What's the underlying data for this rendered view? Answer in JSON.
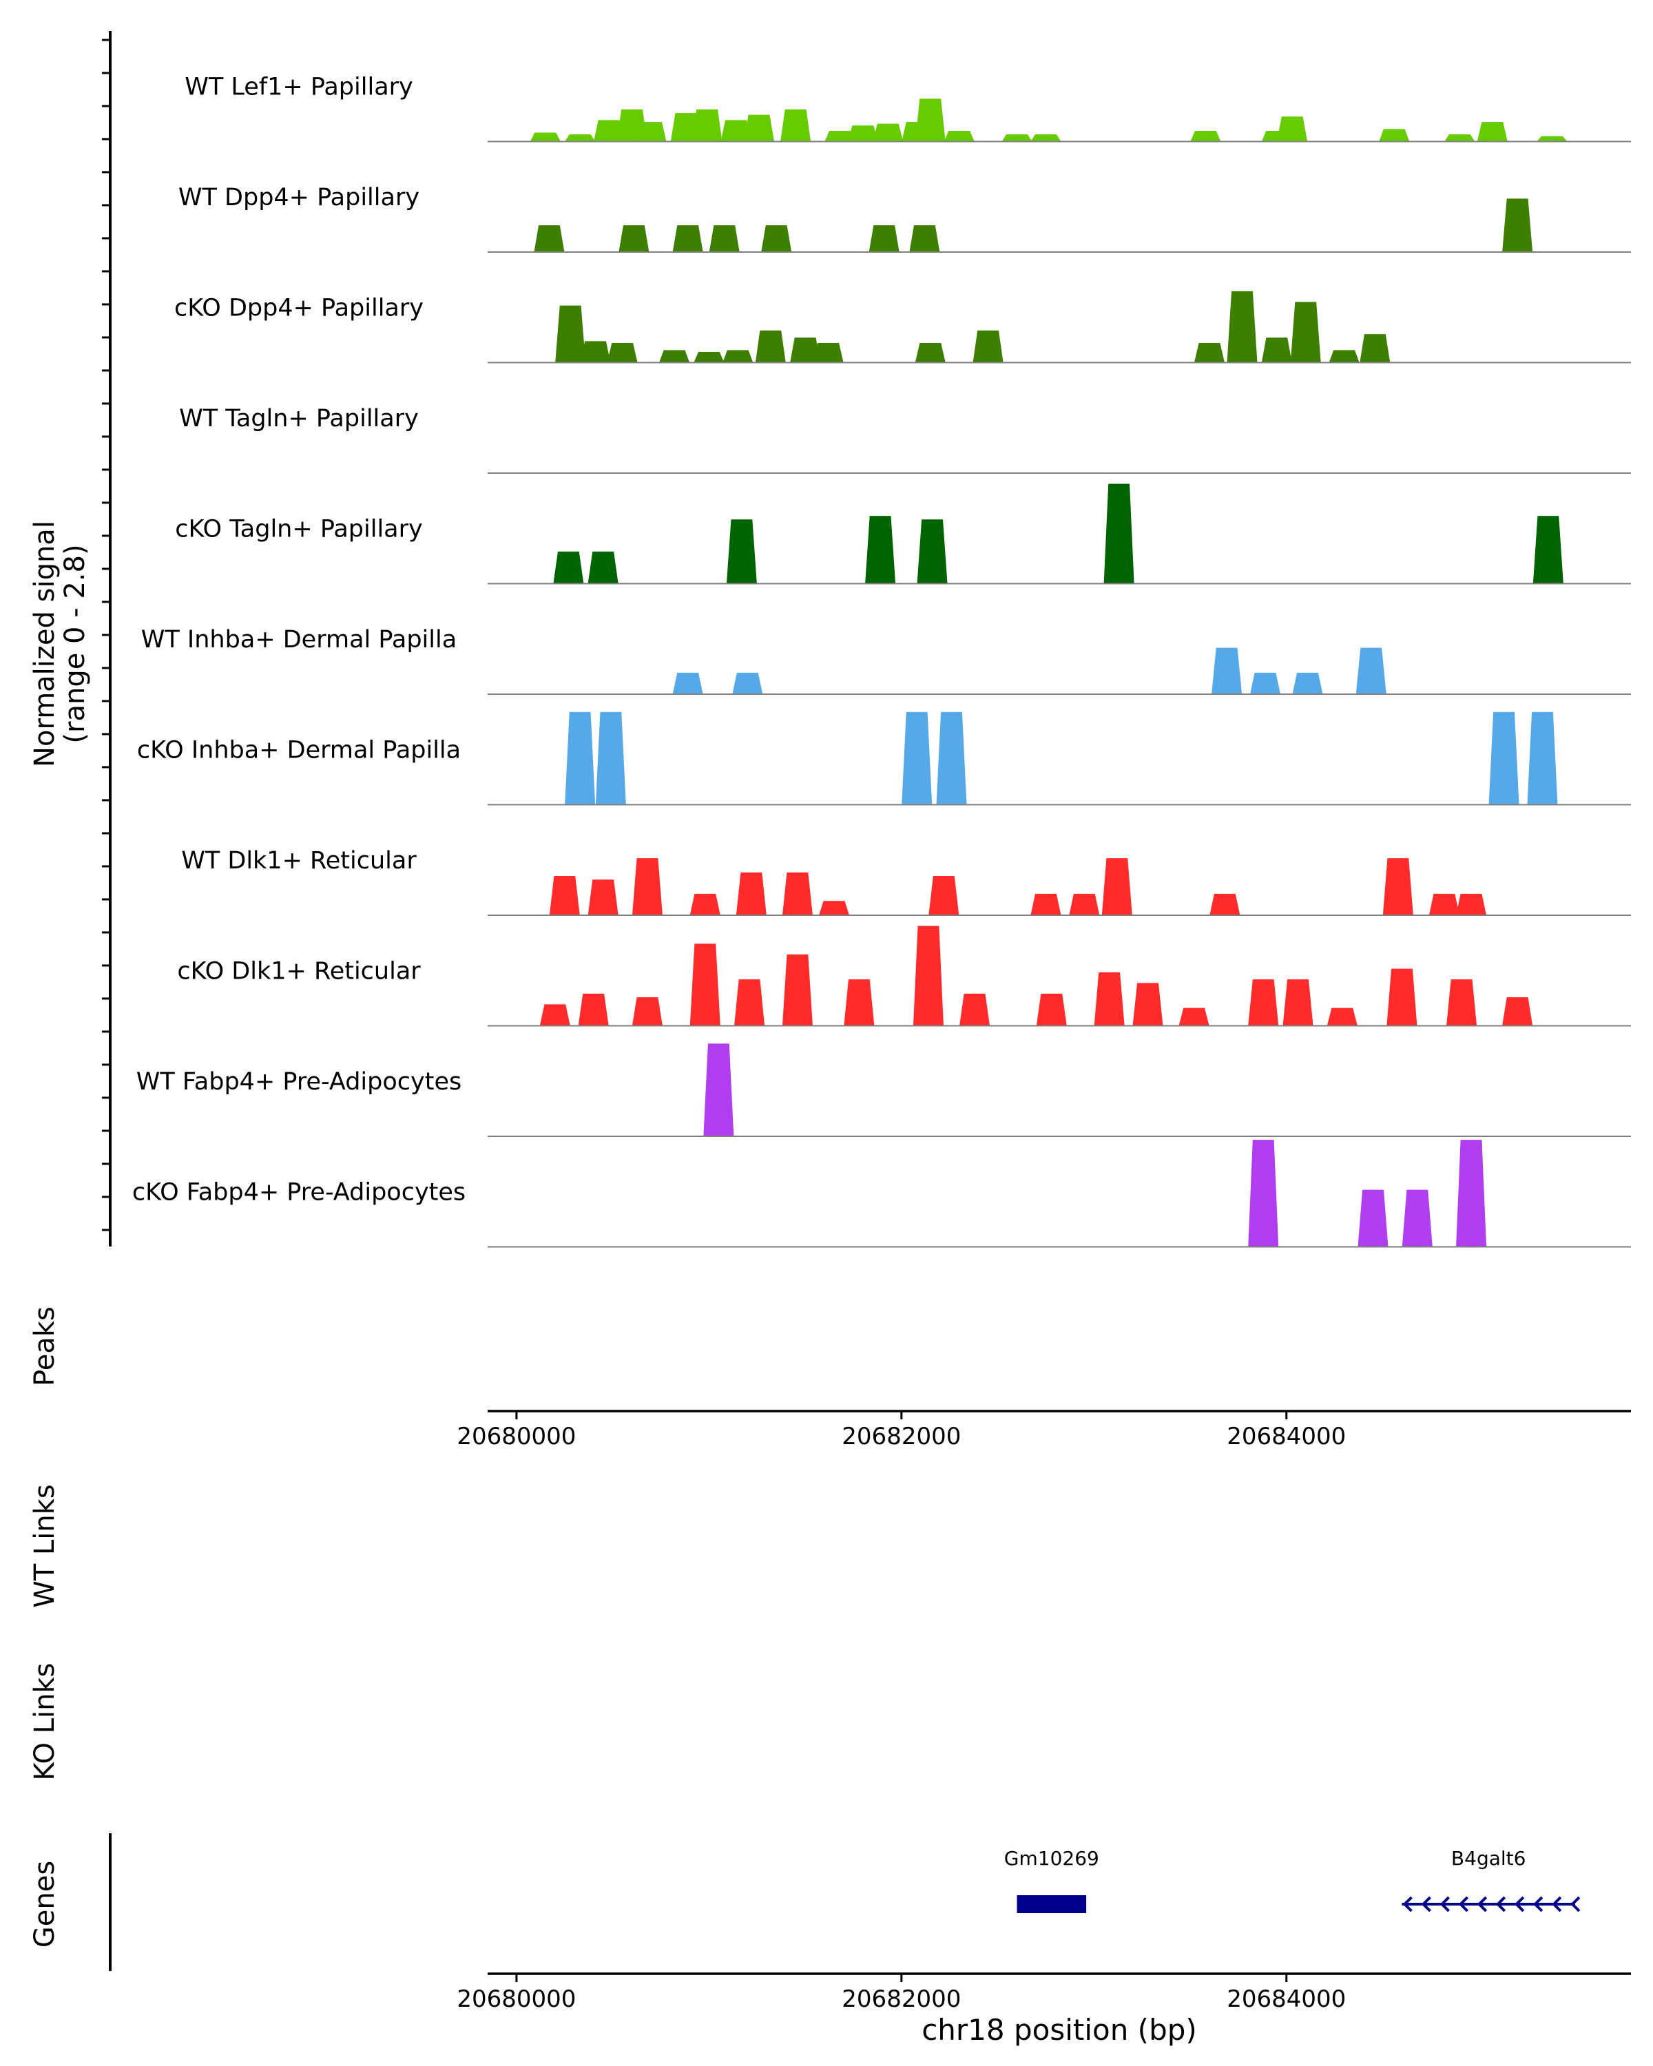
{
  "chart_data": {
    "type": "area",
    "chromosome": "chr18",
    "xlim": [
      20679850,
      20685790
    ],
    "ylim": [
      0,
      2.8
    ],
    "y_axis_title_line1": "Normalized signal",
    "y_axis_title_line2": "(range 0 - 2.8)",
    "xlabel": "chr18 position (bp)",
    "x_ticks": [
      20680000,
      20682000,
      20684000
    ],
    "tracks": [
      {
        "name": "WT Lef1+ Papillary",
        "color": "#66cc00",
        "peaks": [
          [
            20680150,
            0.25
          ],
          [
            20680330,
            0.2
          ],
          [
            20680480,
            0.6
          ],
          [
            20680600,
            0.9
          ],
          [
            20680700,
            0.55
          ],
          [
            20680880,
            0.8
          ],
          [
            20680990,
            0.9
          ],
          [
            20681140,
            0.6
          ],
          [
            20681260,
            0.75
          ],
          [
            20681450,
            0.9
          ],
          [
            20681680,
            0.3
          ],
          [
            20681800,
            0.45
          ],
          [
            20681930,
            0.5
          ],
          [
            20682080,
            0.55
          ],
          [
            20682150,
            1.2
          ],
          [
            20682300,
            0.3
          ],
          [
            20682600,
            0.2
          ],
          [
            20682750,
            0.2
          ],
          [
            20683580,
            0.3
          ],
          [
            20683950,
            0.3
          ],
          [
            20684030,
            0.7
          ],
          [
            20684560,
            0.35
          ],
          [
            20684900,
            0.2
          ],
          [
            20685070,
            0.55
          ],
          [
            20685380,
            0.15
          ]
        ]
      },
      {
        "name": "WT Dpp4+ Papillary",
        "color": "#3d7f00",
        "peaks": [
          [
            20680170,
            0.75
          ],
          [
            20680610,
            0.75
          ],
          [
            20680890,
            0.75
          ],
          [
            20681080,
            0.75
          ],
          [
            20681350,
            0.75
          ],
          [
            20681910,
            0.75
          ],
          [
            20682120,
            0.75
          ],
          [
            20685200,
            1.5
          ]
        ]
      },
      {
        "name": "cKO Dpp4+ Papillary",
        "color": "#3d7f00",
        "peaks": [
          [
            20680280,
            1.6
          ],
          [
            20680410,
            0.6
          ],
          [
            20680550,
            0.55
          ],
          [
            20680820,
            0.35
          ],
          [
            20681000,
            0.3
          ],
          [
            20681150,
            0.35
          ],
          [
            20681320,
            0.9
          ],
          [
            20681500,
            0.7
          ],
          [
            20681620,
            0.55
          ],
          [
            20682150,
            0.55
          ],
          [
            20682450,
            0.9
          ],
          [
            20683600,
            0.55
          ],
          [
            20683770,
            2.0
          ],
          [
            20683950,
            0.7
          ],
          [
            20684100,
            1.7
          ],
          [
            20684300,
            0.35
          ],
          [
            20684460,
            0.8
          ]
        ]
      },
      {
        "name": "WT Tagln+ Papillary",
        "color": "#006400",
        "peaks": []
      },
      {
        "name": "cKO Tagln+ Papillary",
        "color": "#006400",
        "peaks": [
          [
            20680270,
            0.9
          ],
          [
            20680450,
            0.9
          ],
          [
            20681170,
            1.8
          ],
          [
            20681890,
            1.9
          ],
          [
            20682160,
            1.8
          ],
          [
            20683130,
            2.8
          ],
          [
            20685360,
            1.9
          ]
        ]
      },
      {
        "name": "WT Inhba+ Dermal Papilla",
        "color": "#56a9e9",
        "peaks": [
          [
            20680890,
            0.6
          ],
          [
            20681200,
            0.6
          ],
          [
            20683690,
            1.3
          ],
          [
            20683890,
            0.6
          ],
          [
            20684110,
            0.6
          ],
          [
            20684440,
            1.3
          ]
        ]
      },
      {
        "name": "cKO Inhba+ Dermal Papilla",
        "color": "#56a9e9",
        "peaks": [
          [
            20680330,
            2.6
          ],
          [
            20680490,
            2.6
          ],
          [
            20682080,
            2.6
          ],
          [
            20682260,
            2.6
          ],
          [
            20685130,
            2.6
          ],
          [
            20685330,
            2.6
          ]
        ]
      },
      {
        "name": "WT Dlk1+ Reticular",
        "color": "#ff2a2a",
        "peaks": [
          [
            20680250,
            1.1
          ],
          [
            20680450,
            1.0
          ],
          [
            20680680,
            1.6
          ],
          [
            20680980,
            0.6
          ],
          [
            20681220,
            1.2
          ],
          [
            20681460,
            1.2
          ],
          [
            20681650,
            0.4
          ],
          [
            20682220,
            1.1
          ],
          [
            20682750,
            0.6
          ],
          [
            20682950,
            0.6
          ],
          [
            20683120,
            1.6
          ],
          [
            20683680,
            0.6
          ],
          [
            20684580,
            1.6
          ],
          [
            20684820,
            0.6
          ],
          [
            20684960,
            0.6
          ]
        ]
      },
      {
        "name": "cKO Dlk1+ Reticular",
        "color": "#ff2a2a",
        "peaks": [
          [
            20680200,
            0.6
          ],
          [
            20680400,
            0.9
          ],
          [
            20680680,
            0.8
          ],
          [
            20680980,
            2.3
          ],
          [
            20681210,
            1.3
          ],
          [
            20681460,
            2.0
          ],
          [
            20681780,
            1.3
          ],
          [
            20682140,
            2.8
          ],
          [
            20682380,
            0.9
          ],
          [
            20682780,
            0.9
          ],
          [
            20683080,
            1.5
          ],
          [
            20683280,
            1.2
          ],
          [
            20683520,
            0.5
          ],
          [
            20683880,
            1.3
          ],
          [
            20684060,
            1.3
          ],
          [
            20684290,
            0.5
          ],
          [
            20684600,
            1.6
          ],
          [
            20684910,
            1.3
          ],
          [
            20685200,
            0.8
          ]
        ]
      },
      {
        "name": "WT Fabp4+ Pre-Adipocytes",
        "color": "#b03df0",
        "peaks": [
          [
            20681050,
            2.6
          ]
        ]
      },
      {
        "name": "cKO Fabp4+ Pre-Adipocytes",
        "color": "#b03df0",
        "peaks": [
          [
            20683880,
            3.0
          ],
          [
            20684450,
            1.6
          ],
          [
            20684680,
            1.6
          ],
          [
            20684960,
            3.0
          ]
        ]
      }
    ],
    "side_panels": [
      "Peaks",
      "WT Links",
      "KO Links",
      "Genes"
    ],
    "genes": [
      {
        "name": "Gm10269",
        "start": 20682600,
        "end": 20682960,
        "strand": "+"
      },
      {
        "name": "B4galt6",
        "start": 20684600,
        "end": 20685500,
        "strand": "-"
      }
    ],
    "colors": {
      "axis": "#000000",
      "baseline": "#7f7f7f",
      "tick_text": "#4d4d4d",
      "gene": "#00008b"
    }
  }
}
